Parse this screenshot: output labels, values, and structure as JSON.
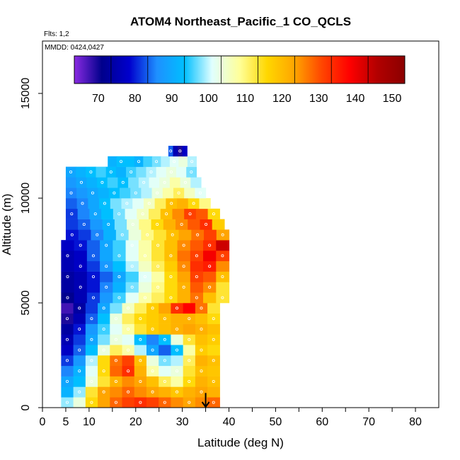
{
  "chart_data": {
    "type": "heatmap",
    "title": "ATOM4 Northeast_Pacific_1 CO_QCLS",
    "annotations": {
      "flights": "Flts: 1,2",
      "dates": "MMDD: 0424,0427"
    },
    "xlabel": "Latitude (deg N)",
    "ylabel": "Altitude (m)",
    "xlim": [
      0,
      85
    ],
    "ylim": [
      0,
      17500
    ],
    "x_ticks": [
      0,
      5,
      10,
      20,
      30,
      40,
      50,
      60,
      70,
      80
    ],
    "y_ticks": [
      0,
      5000,
      10000,
      15000
    ],
    "y_tick_labels": [
      "0",
      "5000",
      "10000",
      "15000"
    ],
    "colorbar": {
      "placement": "top-inside",
      "range": [
        60,
        150
      ],
      "ticks": [
        70,
        80,
        90,
        100,
        110,
        120,
        130,
        140,
        150
      ],
      "colors": [
        "#8a2be2",
        "#00008b",
        "#0000cd",
        "#1e90ff",
        "#00bfff",
        "#e0ffff",
        "#ffff99",
        "#ffd700",
        "#ffa500",
        "#ff4500",
        "#ff0000",
        "#b20000",
        "#8b0000"
      ]
    },
    "profile_marker": {
      "latitude": 35,
      "altitude": 700
    },
    "layers": [
      {
        "alt_bottom": 0,
        "alt_top": 500,
        "lat_start": 4,
        "lat_end": 38,
        "values": [
          95,
          100,
          112,
          120,
          125,
          128,
          130,
          128,
          125,
          122,
          120,
          122,
          125
        ]
      },
      {
        "alt_bottom": 500,
        "alt_top": 1000,
        "lat_start": 4,
        "lat_end": 38,
        "values": [
          88,
          95,
          110,
          120,
          122,
          125,
          122,
          120,
          118,
          115,
          118,
          120,
          118
        ]
      },
      {
        "alt_bottom": 1000,
        "alt_top": 1500,
        "lat_start": 4,
        "lat_end": 38,
        "values": [
          86,
          90,
          100,
          110,
          118,
          122,
          120,
          116,
          108,
          104,
          112,
          118,
          116
        ]
      },
      {
        "alt_bottom": 1500,
        "alt_top": 2000,
        "lat_start": 4,
        "lat_end": 38,
        "values": [
          82,
          88,
          98,
          112,
          125,
          130,
          118,
          104,
          98,
          100,
          110,
          116,
          115
        ]
      },
      {
        "alt_bottom": 2000,
        "alt_top": 2500,
        "lat_start": 4,
        "lat_end": 38,
        "values": [
          78,
          84,
          96,
          112,
          124,
          128,
          116,
          100,
          94,
          96,
          108,
          118,
          116
        ]
      },
      {
        "alt_bottom": 2500,
        "alt_top": 3000,
        "lat_start": 4,
        "lat_end": 38,
        "values": [
          74,
          80,
          90,
          100,
          108,
          104,
          96,
          86,
          80,
          90,
          104,
          114,
          112
        ]
      },
      {
        "alt_bottom": 3000,
        "alt_top": 3500,
        "lat_start": 4,
        "lat_end": 38,
        "values": [
          72,
          78,
          86,
          94,
          100,
          98,
          90,
          82,
          90,
          100,
          110,
          116,
          114
        ]
      },
      {
        "alt_bottom": 3500,
        "alt_top": 4000,
        "lat_start": 4,
        "lat_end": 38,
        "values": [
          70,
          76,
          84,
          92,
          98,
          104,
          110,
          114,
          116,
          118,
          120,
          118,
          116
        ]
      },
      {
        "alt_bottom": 4000,
        "alt_top": 4500,
        "lat_start": 4,
        "lat_end": 38,
        "values": [
          66,
          72,
          80,
          90,
          100,
          108,
          112,
          114,
          116,
          118,
          118,
          116,
          112
        ]
      },
      {
        "alt_bottom": 4500,
        "alt_top": 5000,
        "lat_start": 4,
        "lat_end": 38,
        "values": [
          64,
          70,
          78,
          86,
          94,
          102,
          108,
          114,
          120,
          130,
          135,
          124,
          110
        ]
      },
      {
        "alt_bottom": 5000,
        "alt_top": 5500,
        "lat_start": 4,
        "lat_end": 40,
        "values": [
          68,
          72,
          78,
          84,
          92,
          98,
          104,
          108,
          112,
          118,
          124,
          116,
          110
        ]
      },
      {
        "alt_bottom": 5500,
        "alt_top": 6000,
        "lat_start": 4,
        "lat_end": 40,
        "values": [
          70,
          72,
          76,
          82,
          88,
          94,
          100,
          106,
          112,
          118,
          126,
          122,
          110
        ]
      },
      {
        "alt_bottom": 6000,
        "alt_top": 6500,
        "lat_start": 4,
        "lat_end": 40,
        "values": [
          70,
          72,
          76,
          80,
          86,
          92,
          98,
          104,
          112,
          120,
          128,
          126,
          116
        ]
      },
      {
        "alt_bottom": 6500,
        "alt_top": 7000,
        "lat_start": 4,
        "lat_end": 40,
        "values": [
          72,
          74,
          78,
          84,
          90,
          96,
          102,
          108,
          114,
          122,
          130,
          132,
          122
        ]
      },
      {
        "alt_bottom": 7000,
        "alt_top": 7500,
        "lat_start": 4,
        "lat_end": 40,
        "values": [
          72,
          74,
          80,
          86,
          92,
          98,
          104,
          110,
          116,
          124,
          128,
          136,
          128
        ]
      },
      {
        "alt_bottom": 7500,
        "alt_top": 8000,
        "lat_start": 4,
        "lat_end": 40,
        "values": [
          74,
          76,
          80,
          86,
          92,
          98,
          104,
          110,
          116,
          122,
          126,
          130,
          140
        ]
      },
      {
        "alt_bottom": 8000,
        "alt_top": 8500,
        "lat_start": 5,
        "lat_end": 40,
        "values": [
          76,
          78,
          82,
          88,
          94,
          100,
          106,
          110,
          116,
          120,
          124,
          128,
          120
        ]
      },
      {
        "alt_bottom": 8500,
        "alt_top": 9000,
        "lat_start": 5,
        "lat_end": 39,
        "values": [
          78,
          80,
          84,
          88,
          94,
          100,
          106,
          112,
          118,
          122,
          126,
          130,
          114
        ]
      },
      {
        "alt_bottom": 9000,
        "alt_top": 9500,
        "lat_start": 5,
        "lat_end": 38,
        "values": [
          78,
          82,
          86,
          90,
          94,
          98,
          102,
          108,
          116,
          122,
          128,
          126,
          112
        ]
      },
      {
        "alt_bottom": 9500,
        "alt_top": 10000,
        "lat_start": 5,
        "lat_end": 36,
        "values": [
          80,
          82,
          86,
          90,
          94,
          96,
          98,
          102,
          108,
          116,
          118,
          112,
          106
        ]
      },
      {
        "alt_bottom": 10000,
        "alt_top": 10500,
        "lat_start": 5,
        "lat_end": 35,
        "values": [
          82,
          84,
          86,
          88,
          90,
          92,
          94,
          96,
          100,
          104,
          108,
          102,
          98
        ]
      },
      {
        "alt_bottom": 10500,
        "alt_top": 11000,
        "lat_start": 5,
        "lat_end": 34,
        "values": [
          84,
          86,
          88,
          90,
          92,
          90,
          94,
          96,
          98,
          100,
          104,
          100,
          96
        ]
      },
      {
        "alt_bottom": 11000,
        "alt_top": 11500,
        "lat_start": 5,
        "lat_end": 33,
        "values": [
          86,
          88,
          90,
          92,
          90,
          88,
          92,
          94,
          96,
          98,
          100,
          98,
          94
        ]
      },
      {
        "alt_bottom": 11500,
        "alt_top": 12000,
        "lat_start": 14,
        "lat_end": 33,
        "values": [
          88,
          90,
          90,
          88,
          92,
          94,
          96,
          98,
          100,
          96
        ]
      },
      {
        "alt_bottom": 12000,
        "alt_top": 12500,
        "lat_start": 27,
        "lat_end": 31,
        "values": [
          80,
          72,
          66,
          74
        ]
      }
    ]
  }
}
